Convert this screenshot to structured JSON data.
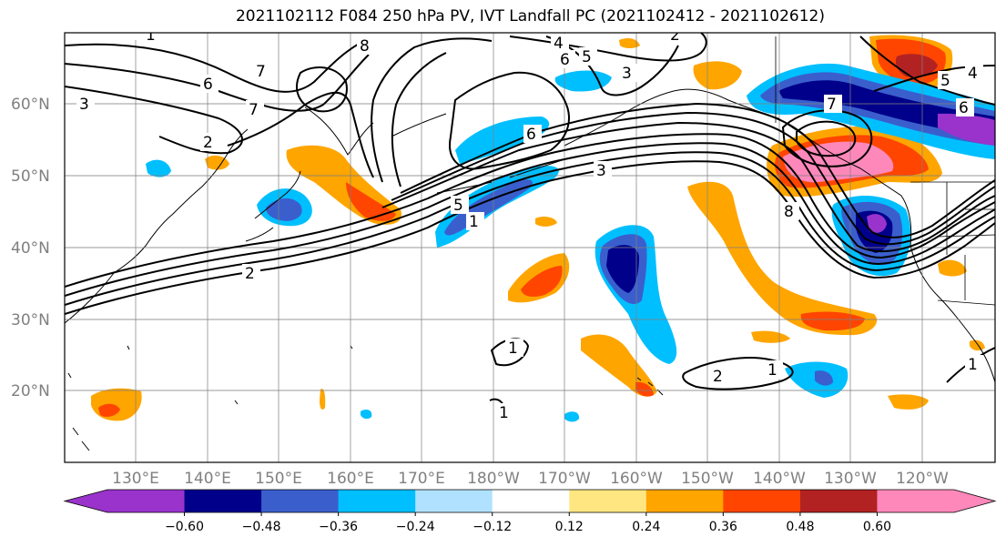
{
  "title": "2021102112 F084 250 hPa PV, IVT Landfall PC (2021102412 - 2021102612)",
  "lat_labels": [
    "60°N",
    "50°N",
    "40°N",
    "30°N",
    "20°N"
  ],
  "lon_labels": [
    "130°E",
    "140°E",
    "150°E",
    "160°E",
    "170°E",
    "180°W",
    "170°W",
    "160°W",
    "150°W",
    "140°W",
    "130°W",
    "120°W"
  ],
  "colorbar": {
    "tick_labels": [
      "−0.60",
      "−0.48",
      "−0.36",
      "−0.24",
      "−0.12",
      "0.12",
      "0.24",
      "0.36",
      "0.48",
      "0.60"
    ],
    "colors": [
      "#9933cc",
      "#00008b",
      "#3a5fcd",
      "#00bfff",
      "#b0e2ff",
      "#ffffff",
      "#ffe680",
      "#ffa500",
      "#ff4500",
      "#b22222",
      "#ff88bb"
    ]
  },
  "contour_labels": [
    "3",
    "7",
    "6",
    "8",
    "7",
    "4",
    "5",
    "3",
    "6",
    "6",
    "3",
    "1",
    "2",
    "2",
    "5",
    "8",
    "7",
    "5",
    "4",
    "6",
    "1",
    "2",
    "1",
    "1",
    "1",
    "1",
    "2"
  ]
}
